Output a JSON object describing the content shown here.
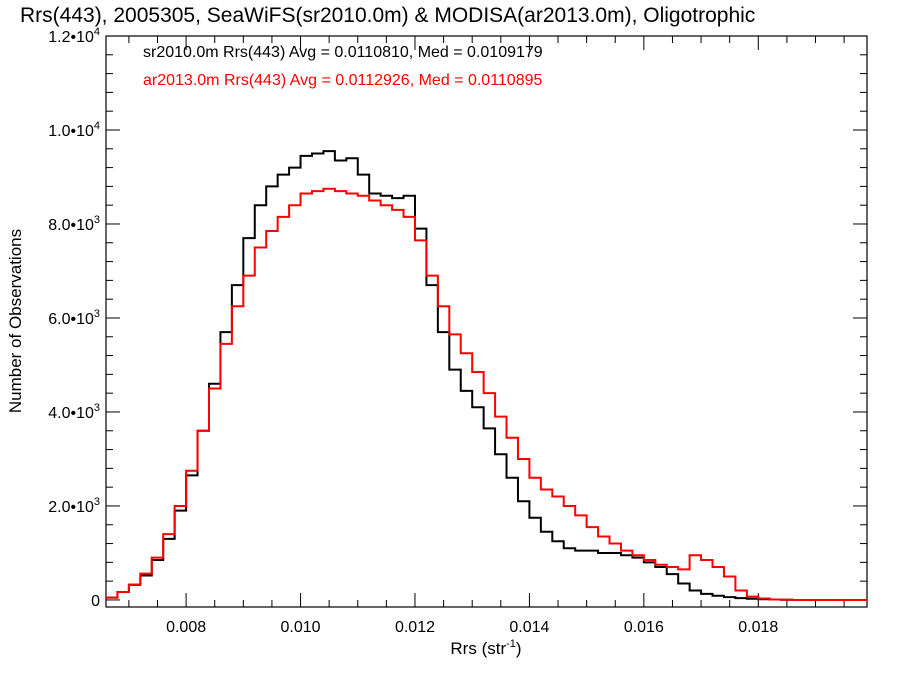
{
  "chart_data": {
    "type": "line",
    "title": "Rrs(443), 2005305, SeaWiFS(sr2010.0m) & MODISA(ar2013.0m), Oligotrophic",
    "xlabel": {
      "main": "Rrs (str",
      "sup": "-1",
      "close": ")"
    },
    "ylabel": "Number of Observations",
    "xlim": [
      0.0066,
      0.0199
    ],
    "ylim": [
      -150,
      12000
    ],
    "x_ticks": [
      {
        "value": 0.008,
        "label": "0.008"
      },
      {
        "value": 0.01,
        "label": "0.010"
      },
      {
        "value": 0.012,
        "label": "0.012"
      },
      {
        "value": 0.014,
        "label": "0.014"
      },
      {
        "value": 0.016,
        "label": "0.016"
      },
      {
        "value": 0.018,
        "label": "0.018"
      }
    ],
    "y_ticks": [
      {
        "value": 0,
        "mant": "0",
        "exp": ""
      },
      {
        "value": 2000,
        "mant": "2.0•10",
        "exp": "3"
      },
      {
        "value": 4000,
        "mant": "4.0•10",
        "exp": "3"
      },
      {
        "value": 6000,
        "mant": "6.0•10",
        "exp": "3"
      },
      {
        "value": 8000,
        "mant": "8.0•10",
        "exp": "3"
      },
      {
        "value": 10000,
        "mant": "1.0•10",
        "exp": "4"
      },
      {
        "value": 12000,
        "mant": "1.2•10",
        "exp": "4"
      }
    ],
    "legend": [
      {
        "text": "sr2010.0m Rrs(443) Avg = 0.0110810, Med = 0.0109179",
        "color": "#000000"
      },
      {
        "text": "ar2013.0m Rrs(443) Avg = 0.0112926, Med = 0.0110895",
        "color": "#ff0000"
      }
    ],
    "series": [
      {
        "color": "#000000",
        "x": [
          0.0066,
          0.0068,
          0.007,
          0.0072,
          0.0074,
          0.0076,
          0.0078,
          0.008,
          0.0082,
          0.0084,
          0.0086,
          0.0088,
          0.009,
          0.0092,
          0.0094,
          0.0096,
          0.0098,
          0.01,
          0.0102,
          0.0104,
          0.0106,
          0.0108,
          0.011,
          0.0112,
          0.0114,
          0.0116,
          0.0118,
          0.012,
          0.0122,
          0.0124,
          0.0126,
          0.0128,
          0.013,
          0.0132,
          0.0134,
          0.0136,
          0.0138,
          0.014,
          0.0142,
          0.0144,
          0.0146,
          0.0148,
          0.015,
          0.0152,
          0.0154,
          0.0156,
          0.0158,
          0.016,
          0.0162,
          0.0164,
          0.0166,
          0.0168,
          0.017,
          0.0172,
          0.0174,
          0.0176,
          0.0178,
          0.018,
          0.0182,
          0.0184,
          0.0186,
          0.0188,
          0.019,
          0.0192,
          0.0194,
          0.0196,
          0.0198
        ],
        "values": [
          50,
          170,
          320,
          520,
          850,
          1300,
          1900,
          2650,
          3600,
          4600,
          5700,
          6700,
          7700,
          8400,
          8800,
          9050,
          9200,
          9450,
          9500,
          9550,
          9350,
          9400,
          9050,
          8650,
          8600,
          8550,
          8600,
          7900,
          6700,
          5700,
          4900,
          4450,
          4100,
          3650,
          3100,
          2600,
          2100,
          1750,
          1450,
          1250,
          1100,
          1050,
          1050,
          1000,
          1000,
          950,
          900,
          800,
          700,
          550,
          350,
          200,
          130,
          90,
          60,
          40,
          25,
          15,
          10,
          5,
          0,
          0,
          0,
          0,
          0,
          0,
          0
        ]
      },
      {
        "color": "#ff0000",
        "x": [
          0.0066,
          0.0068,
          0.007,
          0.0072,
          0.0074,
          0.0076,
          0.0078,
          0.008,
          0.0082,
          0.0084,
          0.0086,
          0.0088,
          0.009,
          0.0092,
          0.0094,
          0.0096,
          0.0098,
          0.01,
          0.0102,
          0.0104,
          0.0106,
          0.0108,
          0.011,
          0.0112,
          0.0114,
          0.0116,
          0.0118,
          0.012,
          0.0122,
          0.0124,
          0.0126,
          0.0128,
          0.013,
          0.0132,
          0.0134,
          0.0136,
          0.0138,
          0.014,
          0.0142,
          0.0144,
          0.0146,
          0.0148,
          0.015,
          0.0152,
          0.0154,
          0.0156,
          0.0158,
          0.016,
          0.0162,
          0.0164,
          0.0166,
          0.0168,
          0.017,
          0.0172,
          0.0174,
          0.0176,
          0.0178,
          0.018,
          0.0182,
          0.0184,
          0.0186,
          0.0188,
          0.019,
          0.0192,
          0.0194,
          0.0196,
          0.0198
        ],
        "values": [
          50,
          170,
          330,
          560,
          900,
          1400,
          2000,
          2750,
          3600,
          4500,
          5450,
          6250,
          6900,
          7500,
          7850,
          8150,
          8400,
          8650,
          8700,
          8750,
          8700,
          8650,
          8600,
          8500,
          8400,
          8300,
          8150,
          7650,
          6900,
          6250,
          5650,
          5250,
          4850,
          4400,
          3900,
          3450,
          3000,
          2600,
          2350,
          2200,
          2000,
          1800,
          1550,
          1350,
          1200,
          1050,
          950,
          850,
          750,
          700,
          650,
          950,
          850,
          700,
          500,
          200,
          70,
          30,
          10,
          5,
          0,
          0,
          0,
          0,
          0,
          0,
          0
        ]
      }
    ]
  }
}
